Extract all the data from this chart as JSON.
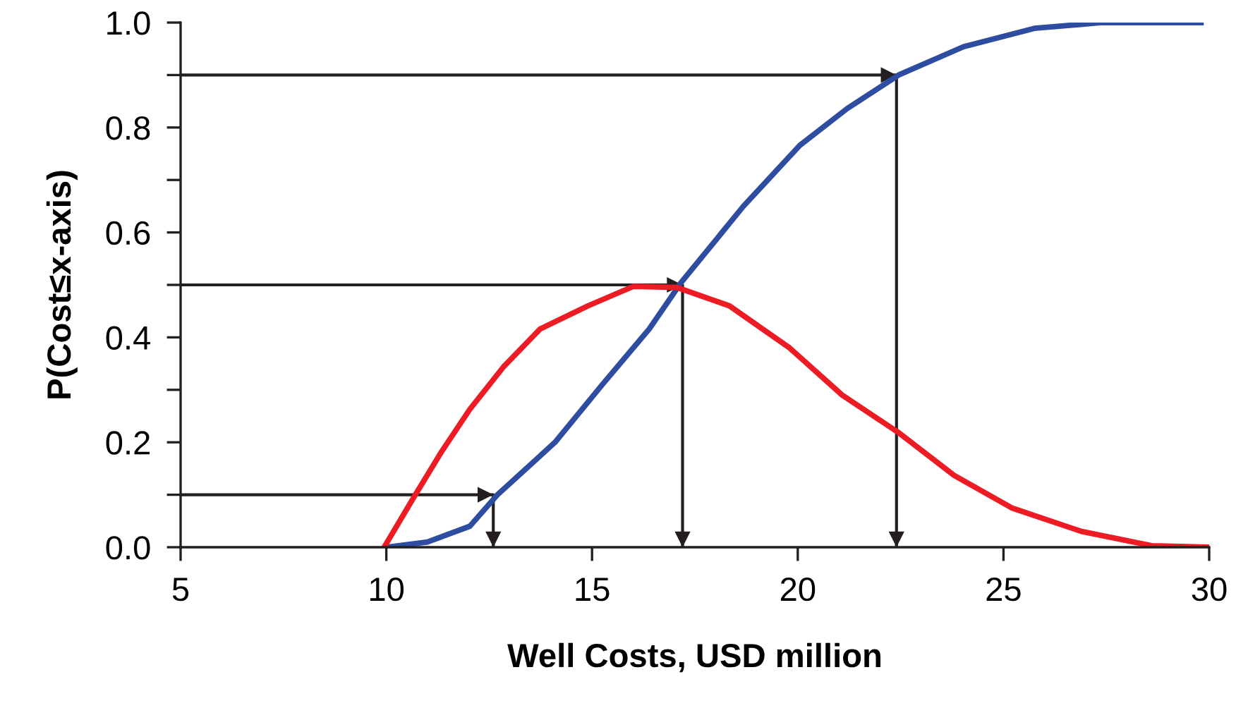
{
  "chart_data": {
    "type": "line",
    "xlabel": "Well Costs, USD million",
    "ylabel": "P(Cost≤x-axis)",
    "xlim": [
      5,
      30
    ],
    "xticks": [
      5,
      10,
      15,
      20,
      25,
      30
    ],
    "ylim": [
      0,
      1.0
    ],
    "yticks": [
      {
        "value": 0,
        "label": "0.0"
      },
      {
        "value": 0.1,
        "label": null
      },
      {
        "value": 0.2,
        "label": "0.2"
      },
      {
        "value": 0.3,
        "label": null
      },
      {
        "value": 0.4,
        "label": "0.4"
      },
      {
        "value": 0.5,
        "label": null
      },
      {
        "value": 0.6,
        "label": "0.6"
      },
      {
        "value": 0.7,
        "label": null
      },
      {
        "value": 0.8,
        "label": "0.8"
      },
      {
        "value": 0.9,
        "label": null
      },
      {
        "value": 1.0,
        "label": "1.0"
      }
    ],
    "grid": false,
    "legend": false,
    "marker": "none",
    "line_style": "solid",
    "series": [
      {
        "color": "#2e4da0",
        "x": [
          10.0,
          10.3,
          11.0,
          12.03,
          12.7,
          14.1,
          15.25,
          16.39,
          17.17,
          18.68,
          20.05,
          21.2,
          22.45,
          24.03,
          25.75,
          27.4,
          29.8
        ],
        "values": [
          0.0,
          0.003,
          0.01,
          0.04,
          0.1,
          0.2,
          0.31,
          0.416,
          0.505,
          0.65,
          0.766,
          0.836,
          0.9,
          0.954,
          0.989,
          1.0,
          1.0
        ]
      },
      {
        "color": "#ed1c24",
        "x": [
          9.97,
          10.66,
          11.35,
          12.03,
          12.85,
          13.74,
          14.9,
          16.0,
          17.07,
          18.34,
          19.8,
          21.08,
          22.46,
          23.8,
          25.2,
          26.9,
          28.6,
          30.0
        ],
        "values": [
          0.003,
          0.094,
          0.183,
          0.263,
          0.344,
          0.416,
          0.46,
          0.497,
          0.495,
          0.46,
          0.38,
          0.29,
          0.218,
          0.137,
          0.075,
          0.03,
          0.003,
          0.0
        ]
      },
      {
        "color": "#231f20",
        "x": [
          5,
          12.6,
          12.6
        ],
        "values": [
          0.1,
          0.1,
          0
        ]
      },
      {
        "color": "#231f20",
        "x": [
          5,
          17.2,
          17.2
        ],
        "values": [
          0.5,
          0.5,
          0
        ]
      },
      {
        "color": "#231f20",
        "x": [
          5,
          22.4,
          22.4
        ],
        "values": [
          0.9,
          0.9,
          0
        ]
      }
    ]
  }
}
